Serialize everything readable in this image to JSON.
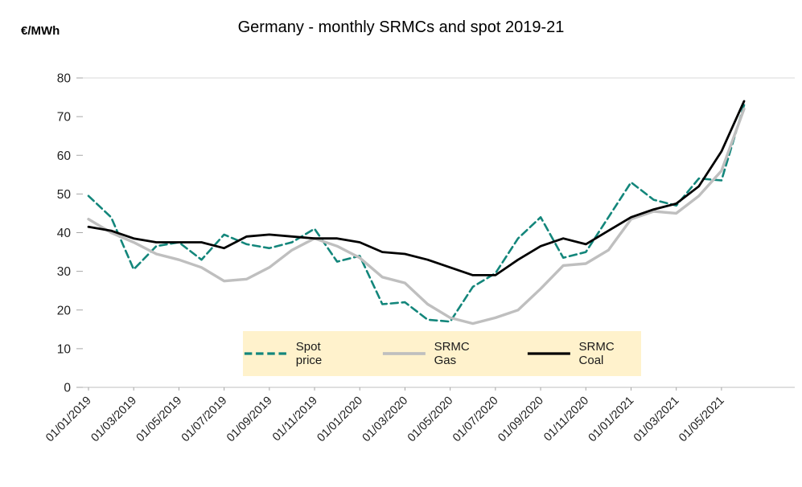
{
  "chart_data": {
    "type": "line",
    "title": "Germany - monthly SRMCs and spot 2019-21",
    "ylabel": "€/MWh",
    "xlabel": "",
    "ylim": [
      0,
      80
    ],
    "yticks": [
      0,
      10,
      20,
      30,
      40,
      50,
      60,
      70,
      80
    ],
    "xtick_every": 2,
    "grid": "top-border-only",
    "legend_position": "bottom-center-inside-plot",
    "colors": {
      "legend_bg": "#FFF2CC",
      "gridline": "#D9D9D9",
      "axis": "#BFBFBF",
      "tick": "#A6A6A6",
      "text": "#1F1F1F"
    },
    "x": [
      "01/01/2019",
      "01/02/2019",
      "01/03/2019",
      "01/04/2019",
      "01/05/2019",
      "01/06/2019",
      "01/07/2019",
      "01/08/2019",
      "01/09/2019",
      "01/10/2019",
      "01/11/2019",
      "01/12/2019",
      "01/01/2020",
      "01/02/2020",
      "01/03/2020",
      "01/04/2020",
      "01/05/2020",
      "01/06/2020",
      "01/07/2020",
      "01/08/2020",
      "01/09/2020",
      "01/10/2020",
      "01/11/2020",
      "01/12/2020",
      "01/01/2021",
      "01/02/2021",
      "01/03/2021",
      "01/04/2021",
      "01/05/2021",
      "01/06/2021"
    ],
    "visible_xtick_labels": [
      "01/01/2019",
      "01/03/2019",
      "01/05/2019",
      "01/07/2019",
      "01/09/2019",
      "01/11/2019",
      "01/01/2020",
      "01/03/2020",
      "01/05/2020",
      "01/07/2020",
      "01/09/2020",
      "01/11/2020",
      "01/01/2021",
      "01/03/2021",
      "01/05/2021"
    ],
    "series": [
      {
        "name": "Spot price",
        "color": "#13867B",
        "style": "dashed",
        "values": [
          49.5,
          44,
          30.5,
          36.5,
          37.5,
          33,
          39.5,
          37,
          36,
          37.5,
          41,
          32.5,
          34,
          21.5,
          22,
          17.5,
          17,
          26,
          29.5,
          38.5,
          44,
          33.5,
          35,
          44,
          53,
          48.5,
          47,
          54,
          53.5,
          73
        ]
      },
      {
        "name": "SRMC Gas",
        "color": "#BFBFBF",
        "style": "solid",
        "values": [
          43.5,
          40,
          37.5,
          34.5,
          33,
          31,
          27.5,
          28,
          31,
          35.5,
          38.5,
          36.5,
          33.5,
          28.5,
          27,
          21.5,
          18,
          16.5,
          18,
          20,
          25.5,
          31.5,
          32,
          35.5,
          43.5,
          45.5,
          45,
          49.5,
          56,
          72
        ]
      },
      {
        "name": "SRMC Coal",
        "color": "#000000",
        "style": "solid",
        "values": [
          41.5,
          40.5,
          38.5,
          37.5,
          37.5,
          37.5,
          36,
          39,
          39.5,
          39,
          38.5,
          38.5,
          37.5,
          35,
          34.5,
          33,
          31,
          29,
          29,
          33,
          36.5,
          38.5,
          37,
          40.5,
          44,
          46,
          47.5,
          52,
          61,
          74
        ]
      }
    ]
  }
}
